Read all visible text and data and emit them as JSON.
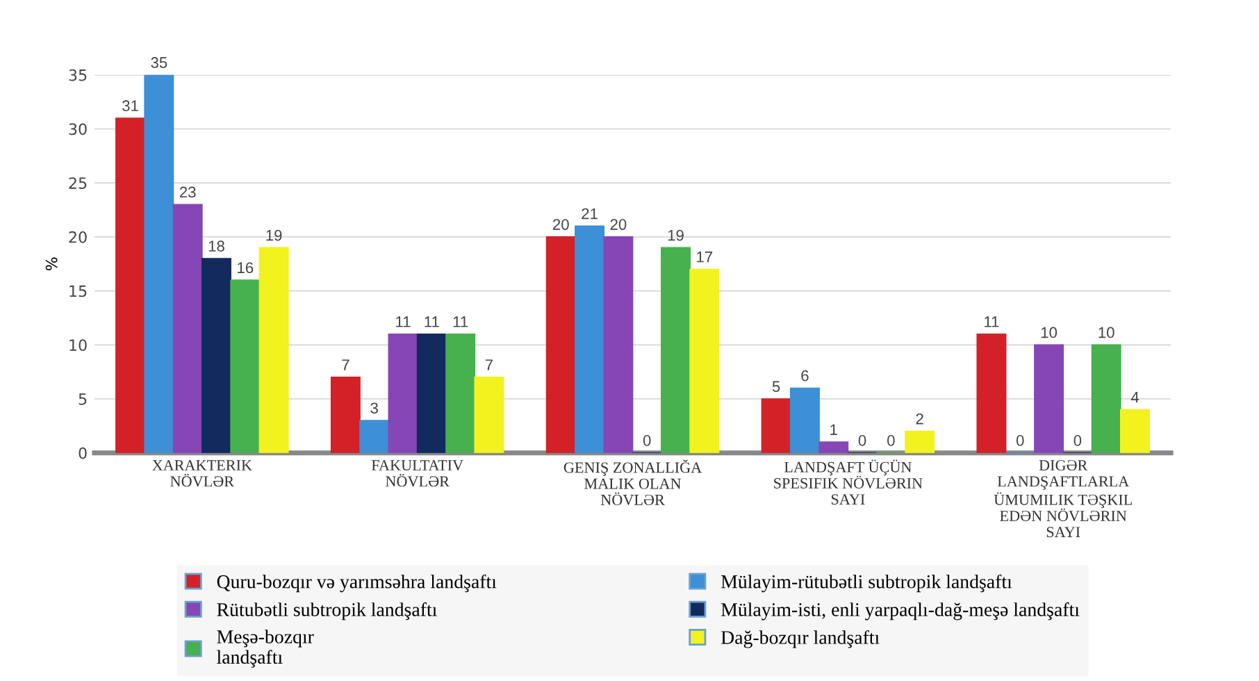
{
  "chart_data": {
    "type": "bar",
    "ylabel": "%",
    "categories": [
      "XARAKTERIK\nNÖVLƏR",
      "FAKULTATIV\nNÖVLƏR",
      "GENIŞ ZONALLIĞA\nMALIK OLAN\nNÖVLƏR",
      "LANDŞAFT ÜÇÜN\nSPESIFIK NÖVLƏRIN\nSAYI",
      "DIGƏR\nLANDŞAFTLARLA\nÜMUMILIK TƏŞKIL\nEDƏN NÖVLƏRIN\nSAYI"
    ],
    "series": [
      {
        "name": "Quru-bozqır və yarımsəhra landşaftı",
        "color": "#d42027",
        "values": [
          31,
          7,
          20,
          5,
          11
        ]
      },
      {
        "name": "Mülayim-rütubətli subtropik landşaftı",
        "color": "#3d8fd6",
        "values": [
          35,
          3,
          21,
          6,
          0
        ]
      },
      {
        "name": "Rütubətli subtropik landşaftı",
        "color": "#8646b5",
        "values": [
          23,
          11,
          20,
          1,
          10
        ]
      },
      {
        "name": "Mülayim-isti, enli yarpaqlı-dağ-meşə landşaftı",
        "color": "#122a5e",
        "values": [
          18,
          11,
          0,
          0,
          0
        ]
      },
      {
        "name": "Meşə-bozqır\nlandşaftı",
        "color": "#47b14f",
        "values": [
          16,
          11,
          19,
          0,
          10
        ]
      },
      {
        "name": "Dağ-bozqır landşaftı",
        "color": "#f2f21e",
        "values": [
          19,
          7,
          17,
          2,
          4
        ]
      }
    ],
    "ylim": [
      0,
      35
    ],
    "yticks": [
      0,
      5,
      10,
      15,
      20,
      25,
      30,
      35
    ],
    "grid": "y",
    "legend": "bottom",
    "data_labels": true
  }
}
